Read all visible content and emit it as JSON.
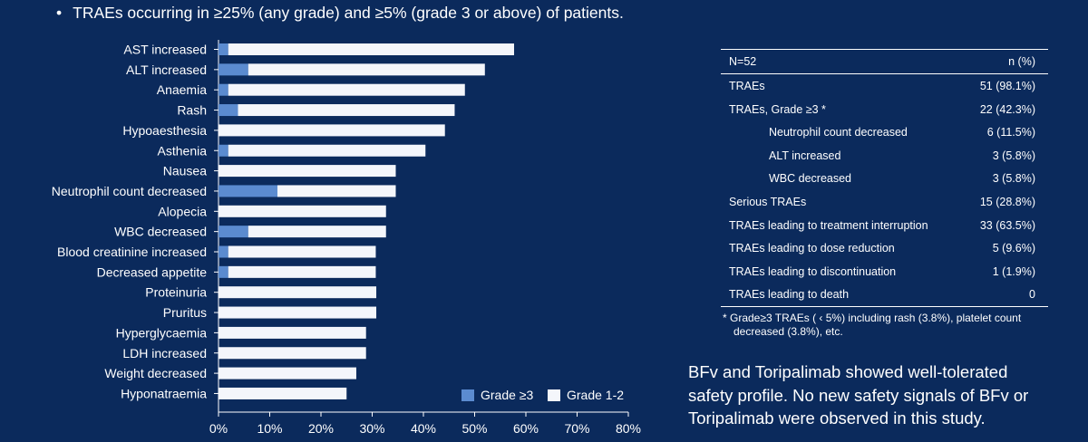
{
  "header": {
    "bullet": "•",
    "text": "TRAEs occurring in ≥25% (any grade) and ≥5% (grade 3 or above) of patients."
  },
  "chart_data": {
    "type": "bar",
    "orientation": "horizontal",
    "stacked": true,
    "categories": [
      "AST increased",
      "ALT increased",
      "Anaemia",
      "Rash",
      "Hypoaesthesia",
      "Asthenia",
      "Nausea",
      "Neutrophil count decreased",
      "Alopecia",
      "WBC decreased",
      "Blood creatinine increased",
      "Decreased appetite",
      "Proteinuria",
      "Pruritus",
      "Hyperglycaemia",
      "LDH increased",
      "Weight decreased",
      "Hyponatraemia"
    ],
    "series": [
      {
        "name": "Grade ≥3",
        "color": "#5b8bd0",
        "values": [
          1.9,
          5.8,
          1.9,
          3.8,
          0,
          1.9,
          0,
          11.5,
          0,
          5.8,
          1.9,
          1.9,
          0,
          0,
          0,
          0,
          0,
          0
        ]
      },
      {
        "name": "Grade 1-2",
        "color": "#f4f6fb",
        "values": [
          55.8,
          46.2,
          46.2,
          42.3,
          44.2,
          38.5,
          34.6,
          23.1,
          32.7,
          26.9,
          28.8,
          28.8,
          30.8,
          30.8,
          28.8,
          28.8,
          26.9,
          25.0
        ]
      }
    ],
    "xticks": [
      "0%",
      "10%",
      "20%",
      "30%",
      "40%",
      "50%",
      "60%",
      "70%",
      "80%"
    ],
    "xlim": [
      0,
      80
    ],
    "legend_position": "bottom-right"
  },
  "table": {
    "header": {
      "label": "N=52",
      "value": "n (%)"
    },
    "rows": [
      {
        "label": "TRAEs",
        "value": "51 (98.1%)",
        "indent": false
      },
      {
        "label": "TRAEs, Grade ≥3 *",
        "value": "22 (42.3%)",
        "indent": false
      },
      {
        "label": "Neutrophil count decreased",
        "value": "6 (11.5%)",
        "indent": true
      },
      {
        "label": "ALT increased",
        "value": "3 (5.8%)",
        "indent": true
      },
      {
        "label": "WBC decreased",
        "value": "3 (5.8%)",
        "indent": true
      },
      {
        "label": "Serious TRAEs",
        "value": "15 (28.8%)",
        "indent": false
      },
      {
        "label": "TRAEs leading to treatment interruption",
        "value": "33 (63.5%)",
        "indent": false
      },
      {
        "label": "TRAEs leading to dose reduction",
        "value": "5 (9.6%)",
        "indent": false
      },
      {
        "label": "TRAEs leading to discontinuation",
        "value": "1 (1.9%)",
        "indent": false
      },
      {
        "label": "TRAEs leading to death",
        "value": "0",
        "indent": false
      }
    ]
  },
  "footnote": {
    "line1": "* Grade≥3 TRAEs ( ‹ 5%) including rash (3.8%), platelet count",
    "line2": "decreased (3.8%), etc."
  },
  "summary": {
    "line1": "BFv and Toripalimab showed well-tolerated",
    "line2": "safety profile. No new safety signals of BFv or",
    "line3": "Toripalimab were observed in this study."
  },
  "colors": {
    "background": "#0b2a5c",
    "grade3": "#5b8bd0",
    "grade12": "#f4f6fb"
  }
}
